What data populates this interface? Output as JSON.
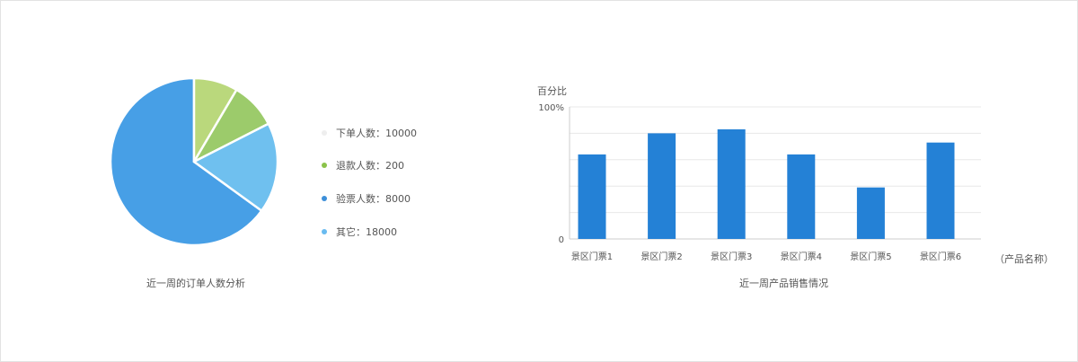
{
  "colors": {
    "pie_slices": [
      "#479fe6",
      "#bad87c",
      "#9ccb6b",
      "#6fc0ef"
    ],
    "legend_dots": [
      "#eeeeee",
      "#8bc34a",
      "#3d8fd9",
      "#69bbf0"
    ],
    "bar": "#2481d6",
    "grid": "#e8e8e8",
    "axis": "#cccccc",
    "text": "#555555"
  },
  "chart_data": [
    {
      "type": "pie",
      "title": "近一周的订单人数分析",
      "slices": [
        {
          "label": "",
          "value": 65
        },
        {
          "label": "",
          "value": 8.5
        },
        {
          "label": "",
          "value": 9
        },
        {
          "label": "",
          "value": 17.5
        }
      ],
      "legend": [
        {
          "label": "下单人数：10000",
          "value": 10000
        },
        {
          "label": "退款人数：200",
          "value": 200
        },
        {
          "label": "验票人数：8000",
          "value": 8000
        },
        {
          "label": "其它：18000",
          "value": 18000
        }
      ],
      "legend_placement": "right"
    },
    {
      "type": "bar",
      "title": "近一周产品销售情况",
      "ylabel": "百分比",
      "xlabel": "（产品名称）",
      "categories": [
        "景区门票1",
        "景区门票2",
        "景区门票3",
        "景区门票4",
        "景区门票5",
        "景区门票6"
      ],
      "values": [
        64,
        80,
        83,
        64,
        39,
        73
      ],
      "ylim": [
        0,
        100
      ],
      "yticks": [
        "0",
        "100%"
      ],
      "grid": true
    }
  ]
}
